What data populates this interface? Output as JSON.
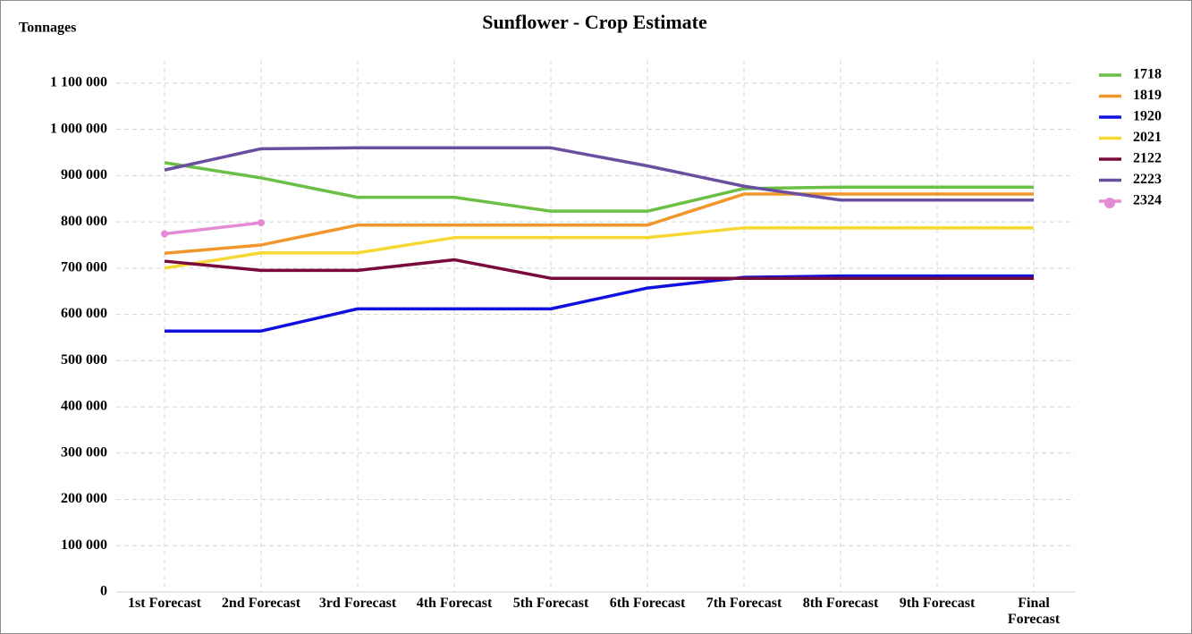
{
  "chart_data": {
    "type": "line",
    "title": "Sunflower - Crop Estimate",
    "y_label": "Tonnages",
    "categories": [
      "1st Forecast",
      "2nd Forecast",
      "3rd Forecast",
      "4th Forecast",
      "5th Forecast",
      "6th Forecast",
      "7th Forecast",
      "8th Forecast",
      "9th Forecast",
      "Final Forecast"
    ],
    "ylim": [
      0,
      1150000
    ],
    "yticks": [
      0,
      {
        "value": 100000,
        "label": "100 000"
      },
      {
        "value": 200000,
        "label": "200 000"
      },
      {
        "value": 300000,
        "label": "300 000"
      },
      {
        "value": 400000,
        "label": "400 000"
      },
      {
        "value": 500000,
        "label": "500 000"
      },
      {
        "value": 600000,
        "label": "600 000"
      },
      {
        "value": 700000,
        "label": "700 000"
      },
      {
        "value": 800000,
        "label": "800 000"
      },
      {
        "value": 900000,
        "label": "900 000"
      },
      {
        "value": 1000000,
        "label": "1 000 000"
      },
      {
        "value": 1100000,
        "label": "1 100 000"
      }
    ],
    "grid": true,
    "legend": "right",
    "series": [
      {
        "name": "1718",
        "color": "#6cbf45",
        "values": [
          928000,
          895000,
          853000,
          853000,
          823000,
          823000,
          872000,
          875000,
          875000,
          875000
        ]
      },
      {
        "name": "1819",
        "color": "#f0962a",
        "values": [
          732000,
          750000,
          793000,
          793000,
          793000,
          793000,
          860000,
          860000,
          860000,
          860000
        ]
      },
      {
        "name": "1920",
        "color": "#1010e0",
        "values": [
          564000,
          564000,
          612000,
          612000,
          612000,
          657000,
          680000,
          683000,
          683000,
          683000
        ]
      },
      {
        "name": "2021",
        "color": "#f7d731",
        "values": [
          700000,
          733000,
          733000,
          766000,
          766000,
          766000,
          787000,
          787000,
          787000,
          787000
        ]
      },
      {
        "name": "2122",
        "color": "#7a0a3c",
        "values": [
          715000,
          695000,
          695000,
          718000,
          678000,
          678000,
          678000,
          678000,
          678000,
          678000
        ]
      },
      {
        "name": "2223",
        "color": "#6a4fa0",
        "values": [
          912000,
          958000,
          960000,
          960000,
          960000,
          921000,
          877000,
          847000,
          847000,
          847000
        ]
      },
      {
        "name": "2324",
        "color": "#e58ad6",
        "markers": true,
        "values": [
          774000,
          798000,
          null,
          null,
          null,
          null,
          null,
          null,
          null,
          null
        ]
      }
    ]
  }
}
